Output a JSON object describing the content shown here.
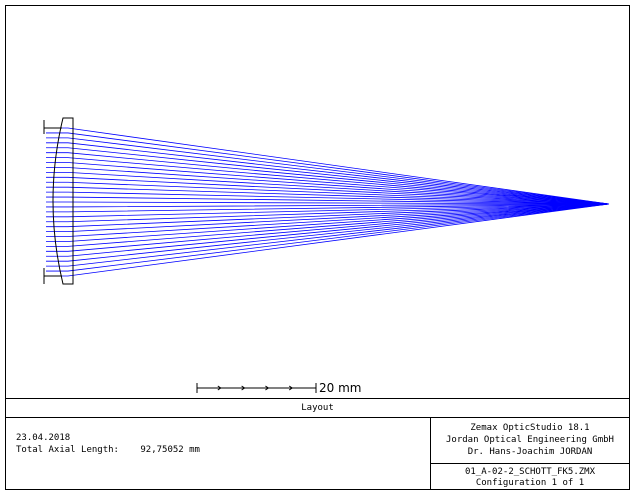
{
  "window": {
    "title": "Layout"
  },
  "scale_bar": {
    "label": "20 mm"
  },
  "footer": {
    "date": "23.04.2018",
    "axial_length_label": "Total Axial Length:",
    "axial_length_value": "92,75052 mm",
    "software": "Zemax OpticStudio 18.1",
    "company": "Jordan Optical Engineering GmbH",
    "author": "Dr. Hans-Joachim JORDAN",
    "file_name": "01_A-02-2_SCHOTT_FK5.ZMX",
    "configuration": "Configuration 1 of 1"
  },
  "colors": {
    "ray": "#0000ff",
    "line": "#000000",
    "background": "#ffffff"
  },
  "diagram": {
    "ray_count": 31,
    "lens": "plano-convex"
  }
}
